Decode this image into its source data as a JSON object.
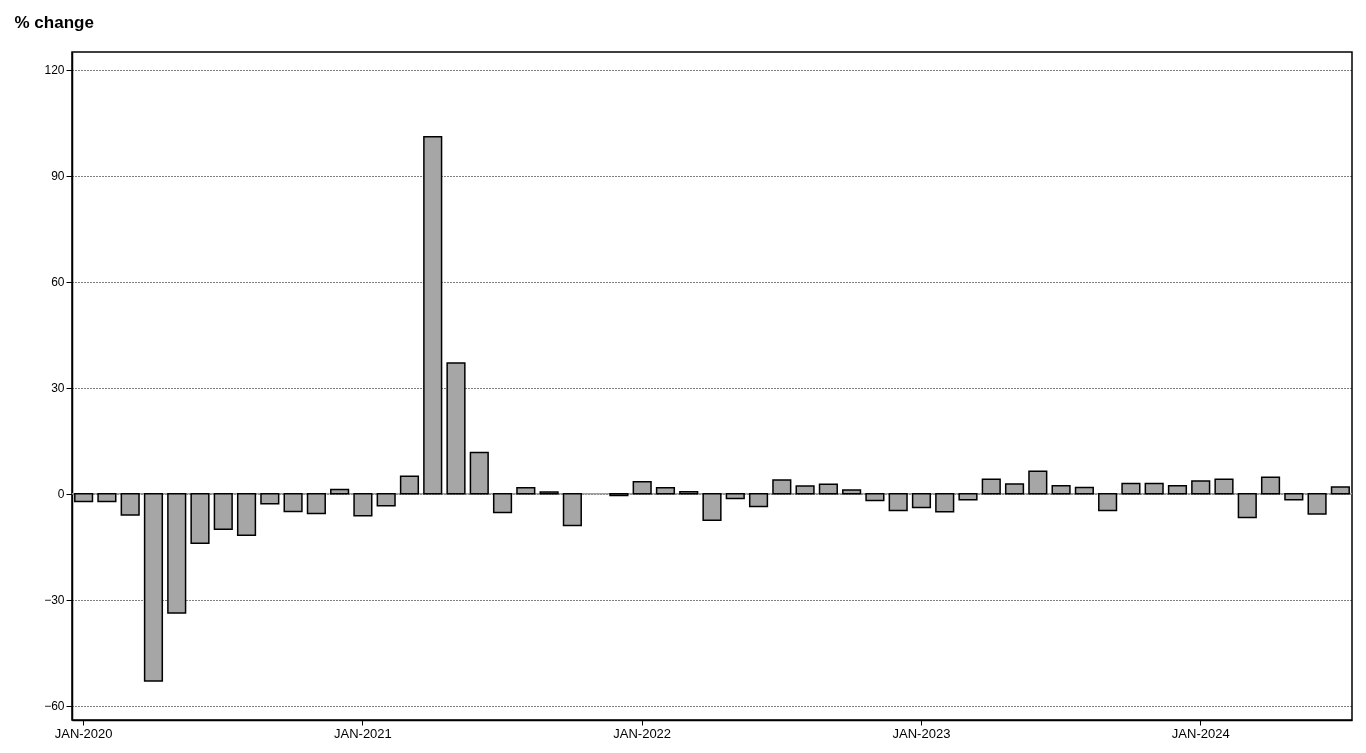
{
  "chart_data": {
    "type": "bar",
    "ylabel": "% change",
    "categories": [
      "JAN-2020",
      null,
      null,
      null,
      null,
      null,
      null,
      null,
      null,
      null,
      null,
      null,
      "JAN-2021",
      null,
      null,
      null,
      null,
      null,
      null,
      null,
      null,
      null,
      null,
      null,
      "JAN-2022",
      null,
      null,
      null,
      null,
      null,
      null,
      null,
      null,
      null,
      null,
      null,
      "JAN-2023",
      null,
      null,
      null,
      null,
      null,
      null,
      null,
      null,
      null,
      null,
      null,
      "JAN-2024",
      null,
      null,
      null,
      null,
      null,
      null
    ],
    "values": [
      -2.2,
      -2.2,
      -6,
      -53,
      -33.7,
      -14,
      -10,
      -11.7,
      -2.8,
      -5,
      -5.6,
      1.2,
      -6.2,
      -3.4,
      5,
      101,
      37,
      11.7,
      -5.3,
      1.7,
      0.5,
      -9,
      null,
      -0.5,
      3.4,
      1.7,
      0.6,
      -7.5,
      -1.3,
      -3.6,
      3.9,
      2.2,
      2.7,
      1.1,
      -1.9,
      -4.7,
      -3.9,
      -5.1,
      -1.7,
      4.1,
      2.8,
      6.4,
      2.3,
      1.8,
      -4.7,
      2.9,
      2.9,
      2.3,
      3.6,
      4.1,
      -6.7,
      4.7,
      -1.7,
      -5.7,
      1.9
    ],
    "color": "#a6a6a6",
    "ylim": [
      -64,
      125
    ],
    "yticks": [
      -60,
      -30,
      0,
      30,
      60,
      90,
      120
    ],
    "grid": "y",
    "ref_lines": [
      {
        "axis": "y",
        "value": 0,
        "color": "#a0a0a0"
      }
    ]
  }
}
